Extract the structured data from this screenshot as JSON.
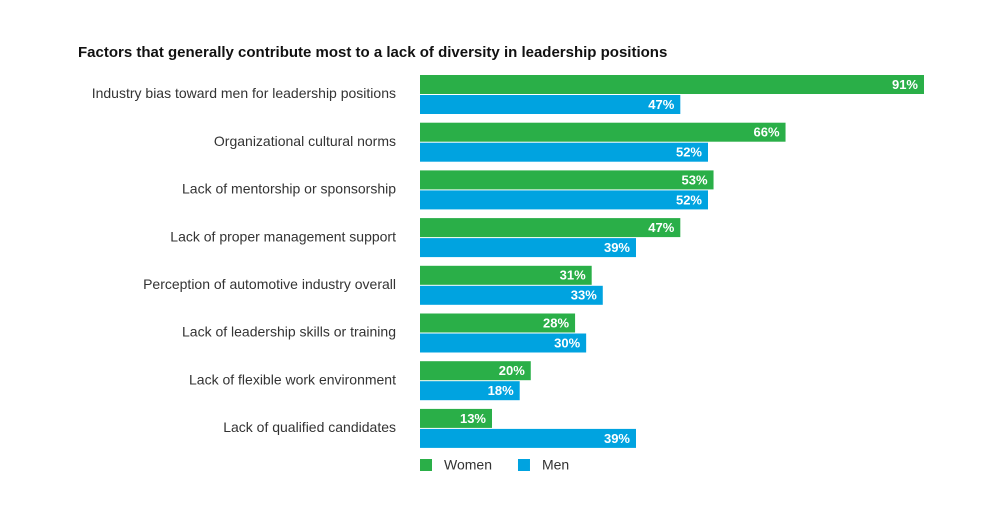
{
  "chart_data": {
    "type": "bar",
    "orientation": "horizontal",
    "title": "Factors that generally contribute most to a lack of diversity in leadership positions",
    "categories": [
      "Industry bias toward men for leadership positions",
      "Organizational cultural norms",
      "Lack of mentorship or sponsorship",
      "Lack of proper management support",
      "Perception of automotive industry overall",
      "Lack of leadership skills or training",
      "Lack of flexible work environment",
      "Lack of qualified candidates"
    ],
    "series": [
      {
        "name": "Women",
        "color": "#2aaf48",
        "values": [
          91,
          66,
          53,
          47,
          31,
          28,
          20,
          13
        ],
        "value_labels": [
          "91%",
          "66%",
          "53%",
          "47%",
          "31%",
          "28%",
          "20%",
          "13%"
        ]
      },
      {
        "name": "Men",
        "color": "#00a3e0",
        "values": [
          47,
          52,
          52,
          39,
          33,
          30,
          18,
          39
        ],
        "value_labels": [
          "47%",
          "52%",
          "52%",
          "39%",
          "33%",
          "30%",
          "18%",
          "39%"
        ]
      }
    ]
  }
}
